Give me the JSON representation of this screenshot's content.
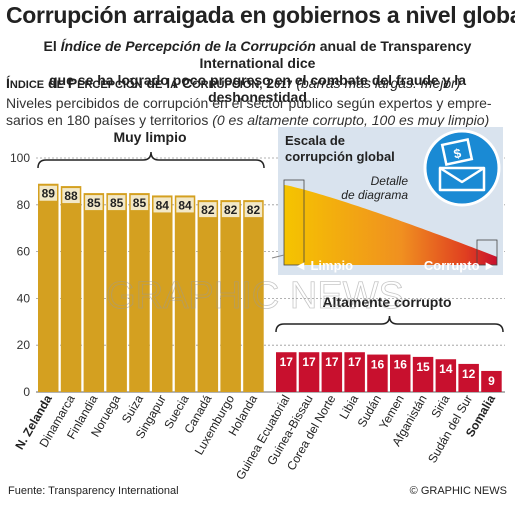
{
  "header": {
    "title": "Corrupción arraigada en gobiernos a nivel global",
    "subtitle_line1_pre": "El ",
    "subtitle_line1_italic": "Índice de Percepción de la Corrupción",
    "subtitle_line1_post": " anual de Transparency International dice",
    "subtitle_line2": "que se ha logrado poco progreso en el combate del fraude y la deshonestidad"
  },
  "chart_header": {
    "label": "Índice de Percepción de la Corrupción, 2017",
    "note": "(barras más largas: mejor)"
  },
  "description": {
    "line1": "Niveles percibidos de corrupción en el sector público según expertos y empre-",
    "line2_plain": "sarios en 180 países y territorios ",
    "line2_italic": "(0 es  altamente corrupto, 100 es muy limpio)"
  },
  "inset": {
    "title_line1": "Escala de",
    "title_line2": "corrupción global",
    "detail_line1": "Detalle",
    "detail_line2": "de diagrama",
    "left_label": "◄ Limpio",
    "right_label": "Corrupto ►",
    "icon": "envelope-money-icon"
  },
  "watermark": "GRAPHIC NEWS",
  "footer": {
    "source": "Fuente: Transparency International",
    "credit": "© GRAPHIC NEWS"
  },
  "colors": {
    "clean": "#d4a020",
    "corrupt": "#c8102e",
    "icon_bg": "#1a8ad4"
  },
  "chart_data": {
    "type": "bar",
    "ylim": [
      0,
      100
    ],
    "yticks": [
      0,
      20,
      40,
      60,
      80,
      100
    ],
    "groups": [
      {
        "label": "Muy limpio",
        "categories": [
          "N. Zelanda",
          "Dinamarca",
          "Finlandia",
          "Noruega",
          "Suiza",
          "Singapur",
          "Suecia",
          "Canadá",
          "Luxemburgo",
          "Holanda"
        ],
        "values": [
          89,
          88,
          85,
          85,
          85,
          84,
          84,
          82,
          82,
          82
        ]
      },
      {
        "label": "Altamente corrupto",
        "categories": [
          "Guinea Ecuatorial",
          "Guinea-Bissau",
          "Corea del Norte",
          "Libia",
          "Sudán",
          "Yemen",
          "Afganistán",
          "Siria",
          "Sudán del Sur",
          "Somalia"
        ],
        "values": [
          17,
          17,
          17,
          17,
          16,
          16,
          15,
          14,
          12,
          9
        ]
      }
    ],
    "bold_categories": [
      "N. Zelanda",
      "Somalia"
    ]
  }
}
